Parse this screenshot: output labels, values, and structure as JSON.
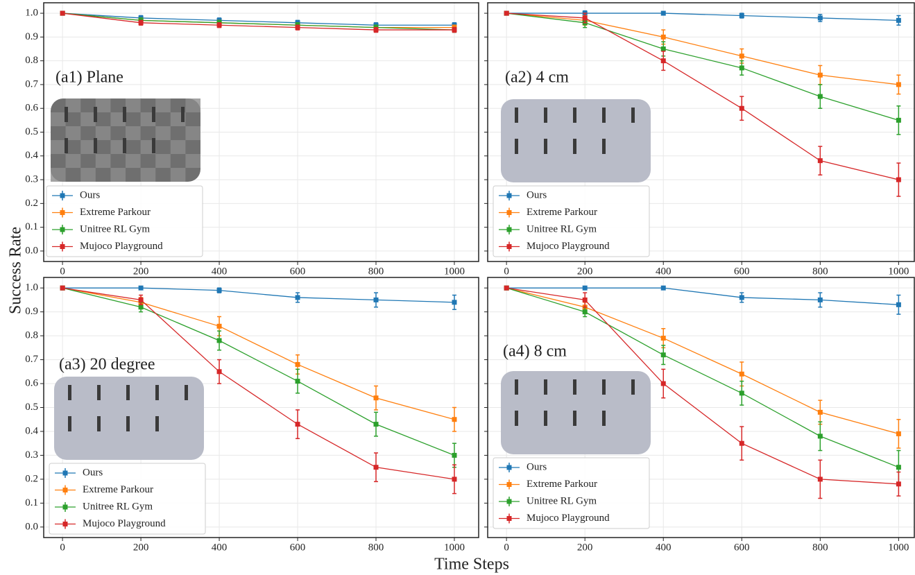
{
  "ylabel": "Success Rate",
  "xlabel": "Time Steps",
  "chart_data": [
    {
      "type": "line",
      "title": "(a1) Plane",
      "legend": "lower left",
      "grid": true,
      "x": [
        0,
        200,
        400,
        600,
        800,
        1000
      ],
      "xlim": [
        -48,
        1062
      ],
      "xticks": [
        0,
        200,
        400,
        600,
        800,
        1000
      ],
      "ylim": [
        -0.044,
        1.044
      ],
      "yticks": [
        {
          "value": 0,
          "label": "0.0"
        },
        0.1,
        0.2,
        0.3,
        0.4,
        0.5,
        0.6,
        0.7,
        0.8,
        0.9,
        {
          "value": 1,
          "label": "1.0"
        }
      ],
      "series": [
        {
          "name": "Ours",
          "color": "#1f77b4",
          "values": [
            1.0,
            0.98,
            0.97,
            0.96,
            0.95,
            0.95
          ],
          "errors": [
            0,
            0.01,
            0.01,
            0.01,
            0.01,
            0.01
          ]
        },
        {
          "name": "Extreme Parkour",
          "color": "#ff7f0e",
          "values": [
            1.0,
            0.97,
            0.96,
            0.95,
            0.94,
            0.94
          ],
          "errors": [
            0,
            0.01,
            0.01,
            0.01,
            0.01,
            0.01
          ]
        },
        {
          "name": "Unitree RL Gym",
          "color": "#2ca02c",
          "values": [
            1.0,
            0.97,
            0.96,
            0.95,
            0.94,
            0.93
          ],
          "errors": [
            0,
            0.01,
            0.01,
            0.01,
            0.01,
            0.01
          ]
        },
        {
          "name": "Mujoco Playground",
          "color": "#d62728",
          "values": [
            1.0,
            0.96,
            0.95,
            0.94,
            0.93,
            0.93
          ],
          "errors": [
            0,
            0.01,
            0.01,
            0.01,
            0.01,
            0.01
          ]
        }
      ]
    },
    {
      "type": "line",
      "title": "(a2) 4 cm",
      "legend": "lower left",
      "grid": true,
      "x": [
        0,
        200,
        400,
        600,
        800,
        1000
      ],
      "xlim": [
        -48,
        1040
      ],
      "xticks": [
        0,
        200,
        400,
        600,
        800,
        1000
      ],
      "ylim": [
        -0.044,
        1.044
      ],
      "yticks": [
        0,
        0.1,
        0.2,
        0.3,
        0.4,
        0.5,
        0.6,
        0.7,
        0.8,
        0.9,
        1
      ],
      "series": [
        {
          "name": "Ours",
          "color": "#1f77b4",
          "values": [
            1.0,
            1.0,
            1.0,
            0.99,
            0.98,
            0.97
          ],
          "errors": [
            0,
            0.01,
            0.005,
            0.01,
            0.015,
            0.02
          ]
        },
        {
          "name": "Extreme Parkour",
          "color": "#ff7f0e",
          "values": [
            1.0,
            0.97,
            0.9,
            0.82,
            0.74,
            0.7
          ],
          "errors": [
            0,
            0.02,
            0.03,
            0.03,
            0.04,
            0.04
          ]
        },
        {
          "name": "Unitree RL Gym",
          "color": "#2ca02c",
          "values": [
            1.0,
            0.96,
            0.85,
            0.77,
            0.65,
            0.55
          ],
          "errors": [
            0,
            0.02,
            0.03,
            0.03,
            0.05,
            0.06
          ]
        },
        {
          "name": "Mujoco Playground",
          "color": "#d62728",
          "values": [
            1.0,
            0.98,
            0.8,
            0.6,
            0.38,
            0.3
          ],
          "errors": [
            0,
            0.02,
            0.04,
            0.05,
            0.06,
            0.07
          ]
        }
      ]
    },
    {
      "type": "line",
      "title": "(a3) 20 degree",
      "legend": "lower left",
      "grid": true,
      "x": [
        0,
        200,
        400,
        600,
        800,
        1000
      ],
      "xlim": [
        -48,
        1062
      ],
      "xticks": [
        0,
        200,
        400,
        600,
        800,
        1000
      ],
      "ylim": [
        -0.044,
        1.044
      ],
      "yticks": [
        {
          "value": 0,
          "label": "0.0"
        },
        0.1,
        0.2,
        0.3,
        0.4,
        0.5,
        0.6,
        0.7,
        0.8,
        0.9,
        {
          "value": 1,
          "label": "1.0"
        }
      ],
      "series": [
        {
          "name": "Ours",
          "color": "#1f77b4",
          "values": [
            1.0,
            1.0,
            0.99,
            0.96,
            0.95,
            0.94
          ],
          "errors": [
            0,
            0.005,
            0.01,
            0.02,
            0.03,
            0.03
          ]
        },
        {
          "name": "Extreme Parkour",
          "color": "#ff7f0e",
          "values": [
            1.0,
            0.94,
            0.84,
            0.68,
            0.54,
            0.45
          ],
          "errors": [
            0,
            0.02,
            0.04,
            0.04,
            0.05,
            0.05
          ]
        },
        {
          "name": "Unitree RL Gym",
          "color": "#2ca02c",
          "values": [
            1.0,
            0.92,
            0.78,
            0.61,
            0.43,
            0.3
          ],
          "errors": [
            0,
            0.02,
            0.04,
            0.05,
            0.05,
            0.05
          ]
        },
        {
          "name": "Mujoco Playground",
          "color": "#d62728",
          "values": [
            1.0,
            0.95,
            0.65,
            0.43,
            0.25,
            0.2
          ],
          "errors": [
            0,
            0.02,
            0.05,
            0.06,
            0.06,
            0.06
          ]
        }
      ]
    },
    {
      "type": "line",
      "title": "(a4) 8 cm",
      "legend": "lower left",
      "grid": true,
      "x": [
        0,
        200,
        400,
        600,
        800,
        1000
      ],
      "xlim": [
        -48,
        1040
      ],
      "xticks": [
        0,
        200,
        400,
        600,
        800,
        1000
      ],
      "ylim": [
        -0.044,
        1.044
      ],
      "yticks": [
        0,
        0.1,
        0.2,
        0.3,
        0.4,
        0.5,
        0.6,
        0.7,
        0.8,
        0.9,
        1
      ],
      "series": [
        {
          "name": "Ours",
          "color": "#1f77b4",
          "values": [
            1.0,
            1.0,
            1.0,
            0.96,
            0.95,
            0.93
          ],
          "errors": [
            0,
            0.005,
            0.005,
            0.02,
            0.03,
            0.04
          ]
        },
        {
          "name": "Extreme Parkour",
          "color": "#ff7f0e",
          "values": [
            1.0,
            0.92,
            0.79,
            0.64,
            0.48,
            0.39
          ],
          "errors": [
            0,
            0.02,
            0.04,
            0.05,
            0.05,
            0.06
          ]
        },
        {
          "name": "Unitree RL Gym",
          "color": "#2ca02c",
          "values": [
            1.0,
            0.9,
            0.72,
            0.56,
            0.38,
            0.25
          ],
          "errors": [
            0,
            0.02,
            0.04,
            0.05,
            0.06,
            0.07
          ]
        },
        {
          "name": "Mujoco Playground",
          "color": "#d62728",
          "values": [
            1.0,
            0.95,
            0.6,
            0.35,
            0.2,
            0.18
          ],
          "errors": [
            0,
            0.03,
            0.06,
            0.07,
            0.08,
            0.05
          ]
        }
      ]
    }
  ]
}
